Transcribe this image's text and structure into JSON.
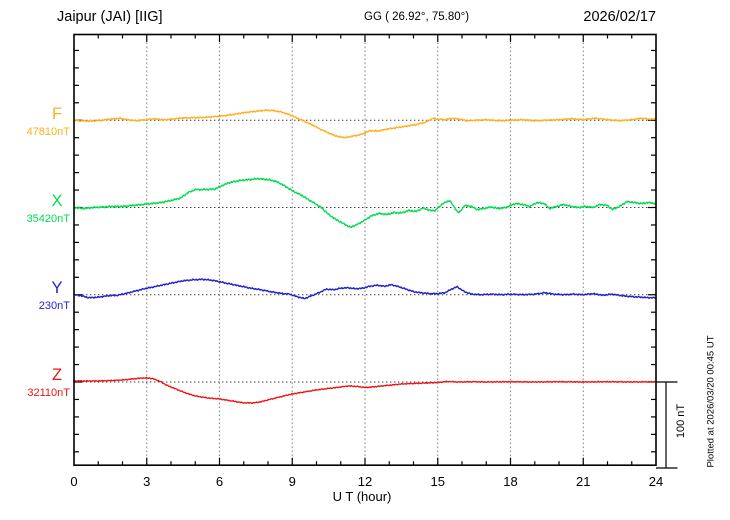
{
  "header": {
    "station": "Jaipur (JAI)  [IIG]",
    "coordinates": "GG ( 26.92°,  75.80°)",
    "date": "2026/02/17"
  },
  "left_labels": [
    {
      "letter": "F",
      "value": "47810nT",
      "color": "#FFAF1E"
    },
    {
      "letter": "X",
      "value": "35420nT",
      "color": "#00DC50"
    },
    {
      "letter": "Y",
      "value": "230nT",
      "color": "#2222CC"
    },
    {
      "letter": "Z",
      "value": "32110nT",
      "color": "#EE1414"
    }
  ],
  "bottom_axis": {
    "hour_labels": [
      "0",
      "3",
      "6",
      "9",
      "12",
      "15",
      "18",
      "21",
      "24"
    ],
    "title": "U T (hour)"
  },
  "scale_bar": {
    "label": "100 nT",
    "nT": 100
  },
  "footer": {
    "plotted_at": "Plotted at 2026/03/20 00:45 UT"
  },
  "chart_data": {
    "type": "line",
    "title": "Jaipur (JAI) [IIG] magnetogram, 2026/02/17",
    "xlabel": "U T (hour)",
    "x_range": [
      0,
      24
    ],
    "x_ticks": [
      0,
      3,
      6,
      9,
      12,
      15,
      18,
      21,
      24
    ],
    "grid": "dotted vertical every 3 h; dotted horizontal at each component baseline",
    "scale_bar_nT": 100,
    "series": [
      {
        "name": "F",
        "baseline_label": "47810nT",
        "color": "#FFAF1E",
        "noise_nT": 1.0,
        "seed": 1,
        "points": [
          [
            0,
            0
          ],
          [
            0.3,
            -0.8
          ],
          [
            0.7,
            -1.0
          ],
          [
            1.2,
            0.2
          ],
          [
            1.6,
            1.5
          ],
          [
            1.9,
            2.3
          ],
          [
            2.2,
            0.5
          ],
          [
            2.6,
            -0.6
          ],
          [
            3.0,
            0.6
          ],
          [
            3.3,
            1.7
          ],
          [
            3.7,
            0.3
          ],
          [
            4.1,
            1.5
          ],
          [
            4.5,
            2.6
          ],
          [
            5.0,
            2.9
          ],
          [
            5.5,
            3.5
          ],
          [
            6.0,
            4.6
          ],
          [
            6.5,
            6.4
          ],
          [
            7.0,
            8.7
          ],
          [
            7.5,
            10.4
          ],
          [
            7.9,
            11.6
          ],
          [
            8.2,
            11.3
          ],
          [
            8.6,
            9.2
          ],
          [
            9.0,
            5.2
          ],
          [
            9.4,
            0.0
          ],
          [
            9.8,
            -5.2
          ],
          [
            10.2,
            -11.0
          ],
          [
            10.6,
            -16.2
          ],
          [
            10.9,
            -19.1
          ],
          [
            11.2,
            -20.2
          ],
          [
            11.5,
            -18.5
          ],
          [
            11.9,
            -16.2
          ],
          [
            12.2,
            -12.1
          ],
          [
            12.5,
            -12.7
          ],
          [
            12.9,
            -10.4
          ],
          [
            13.3,
            -8.7
          ],
          [
            13.7,
            -6.9
          ],
          [
            14.1,
            -5.2
          ],
          [
            14.5,
            -2.3
          ],
          [
            14.8,
            2.3
          ],
          [
            15.0,
            1.2
          ],
          [
            15.3,
            0.6
          ],
          [
            15.6,
            2.3
          ],
          [
            15.9,
            1.2
          ],
          [
            16.2,
            -0.6
          ],
          [
            16.6,
            0.0
          ],
          [
            17.0,
            0.6
          ],
          [
            17.5,
            -0.6
          ],
          [
            18.0,
            0.0
          ],
          [
            18.5,
            0.6
          ],
          [
            19.0,
            -0.6
          ],
          [
            19.5,
            0.0
          ],
          [
            20.0,
            0.6
          ],
          [
            20.5,
            1.7
          ],
          [
            21.0,
            0.6
          ],
          [
            21.5,
            2.3
          ],
          [
            22.0,
            0.6
          ],
          [
            22.5,
            -0.6
          ],
          [
            23.0,
            0.6
          ],
          [
            23.4,
            2.3
          ],
          [
            23.7,
            1.2
          ],
          [
            24,
            1.2
          ]
        ]
      },
      {
        "name": "X",
        "baseline_label": "35420nT",
        "color": "#00DC50",
        "noise_nT": 1.2,
        "seed": 2,
        "points": [
          [
            0,
            0
          ],
          [
            0.4,
            -1.2
          ],
          [
            0.8,
            0.0
          ],
          [
            1.2,
            0.6
          ],
          [
            1.6,
            1.2
          ],
          [
            2.0,
            1.2
          ],
          [
            2.4,
            2.3
          ],
          [
            2.8,
            3.5
          ],
          [
            3.2,
            4.6
          ],
          [
            3.6,
            5.8
          ],
          [
            4.0,
            8.1
          ],
          [
            4.4,
            11.0
          ],
          [
            4.7,
            17.3
          ],
          [
            5.0,
            20.8
          ],
          [
            5.4,
            20.8
          ],
          [
            5.8,
            21.4
          ],
          [
            6.1,
            25.4
          ],
          [
            6.4,
            28.9
          ],
          [
            6.8,
            31.2
          ],
          [
            7.2,
            32.4
          ],
          [
            7.6,
            33.5
          ],
          [
            8.0,
            32.4
          ],
          [
            8.3,
            30.6
          ],
          [
            8.6,
            26.6
          ],
          [
            9.0,
            19.7
          ],
          [
            9.4,
            13.9
          ],
          [
            9.8,
            6.9
          ],
          [
            10.2,
            0.0
          ],
          [
            10.5,
            -8.1
          ],
          [
            10.8,
            -13.9
          ],
          [
            11.1,
            -18.5
          ],
          [
            11.4,
            -23.1
          ],
          [
            11.6,
            -20.8
          ],
          [
            11.9,
            -16.2
          ],
          [
            12.1,
            -12.7
          ],
          [
            12.3,
            -9.2
          ],
          [
            12.6,
            -6.9
          ],
          [
            12.9,
            -8.1
          ],
          [
            13.2,
            -5.8
          ],
          [
            13.5,
            -6.4
          ],
          [
            13.8,
            -3.5
          ],
          [
            14.1,
            -4.6
          ],
          [
            14.4,
            -0.6
          ],
          [
            14.7,
            -3.5
          ],
          [
            14.9,
            -3.5
          ],
          [
            15.2,
            4.6
          ],
          [
            15.5,
            8.1
          ],
          [
            15.8,
            -4.6
          ],
          [
            15.9,
            -5.8
          ],
          [
            16.1,
            2.3
          ],
          [
            16.4,
            1.2
          ],
          [
            16.6,
            -2.3
          ],
          [
            16.9,
            -1.2
          ],
          [
            17.2,
            0.6
          ],
          [
            17.5,
            -1.2
          ],
          [
            17.8,
            0.0
          ],
          [
            18.2,
            4.6
          ],
          [
            18.5,
            3.5
          ],
          [
            18.8,
            1.2
          ],
          [
            19.1,
            5.8
          ],
          [
            19.4,
            4.6
          ],
          [
            19.6,
            -1.2
          ],
          [
            19.9,
            1.2
          ],
          [
            20.2,
            3.5
          ],
          [
            20.5,
            1.2
          ],
          [
            20.8,
            0.0
          ],
          [
            21.1,
            1.2
          ],
          [
            21.4,
            0.0
          ],
          [
            21.7,
            3.5
          ],
          [
            22.0,
            2.3
          ],
          [
            22.2,
            -2.3
          ],
          [
            22.5,
            1.2
          ],
          [
            22.8,
            6.9
          ],
          [
            23.1,
            5.8
          ],
          [
            23.4,
            4.6
          ],
          [
            23.7,
            5.8
          ],
          [
            24,
            4.6
          ]
        ]
      },
      {
        "name": "Y",
        "baseline_label": "230nT",
        "color": "#2222CC",
        "noise_nT": 1.0,
        "seed": 3,
        "points": [
          [
            0,
            0
          ],
          [
            0.3,
            -1.2
          ],
          [
            0.6,
            -3.5
          ],
          [
            1.0,
            -2.9
          ],
          [
            1.4,
            -1.2
          ],
          [
            1.8,
            -0.6
          ],
          [
            2.1,
            1.2
          ],
          [
            2.5,
            4.0
          ],
          [
            2.9,
            6.9
          ],
          [
            3.3,
            9.2
          ],
          [
            3.7,
            11.6
          ],
          [
            4.1,
            13.9
          ],
          [
            4.5,
            16.2
          ],
          [
            4.9,
            17.3
          ],
          [
            5.3,
            17.9
          ],
          [
            5.7,
            16.8
          ],
          [
            6.1,
            14.5
          ],
          [
            6.5,
            12.1
          ],
          [
            6.9,
            9.8
          ],
          [
            7.3,
            7.5
          ],
          [
            7.7,
            5.8
          ],
          [
            8.1,
            3.5
          ],
          [
            8.5,
            1.7
          ],
          [
            8.9,
            0.6
          ],
          [
            9.2,
            -2.3
          ],
          [
            9.5,
            -4.6
          ],
          [
            9.8,
            -1.2
          ],
          [
            10.1,
            2.3
          ],
          [
            10.4,
            6.4
          ],
          [
            10.7,
            5.8
          ],
          [
            11.0,
            7.5
          ],
          [
            11.3,
            8.1
          ],
          [
            11.6,
            6.9
          ],
          [
            11.9,
            7.5
          ],
          [
            12.2,
            9.8
          ],
          [
            12.5,
            11.0
          ],
          [
            12.8,
            9.8
          ],
          [
            13.1,
            11.6
          ],
          [
            13.4,
            9.2
          ],
          [
            13.7,
            6.4
          ],
          [
            14.0,
            3.5
          ],
          [
            14.3,
            2.3
          ],
          [
            14.7,
            1.2
          ],
          [
            15.0,
            1.2
          ],
          [
            15.3,
            2.3
          ],
          [
            15.6,
            6.9
          ],
          [
            15.8,
            9.2
          ],
          [
            16.1,
            3.5
          ],
          [
            16.4,
            0.6
          ],
          [
            16.8,
            0.0
          ],
          [
            17.2,
            0.6
          ],
          [
            17.6,
            0.0
          ],
          [
            18.0,
            0.6
          ],
          [
            18.5,
            0.0
          ],
          [
            19.0,
            0.6
          ],
          [
            19.4,
            2.3
          ],
          [
            19.8,
            0.6
          ],
          [
            20.2,
            0.0
          ],
          [
            20.6,
            0.6
          ],
          [
            21.0,
            0.0
          ],
          [
            21.4,
            1.2
          ],
          [
            21.8,
            -0.6
          ],
          [
            22.2,
            0.6
          ],
          [
            22.6,
            -1.2
          ],
          [
            23.0,
            -2.3
          ],
          [
            23.4,
            -2.9
          ],
          [
            23.7,
            -3.5
          ],
          [
            24,
            -3.5
          ]
        ]
      },
      {
        "name": "Z",
        "baseline_label": "32110nT",
        "color": "#EE1414",
        "noise_nT": 0.7,
        "seed": 4,
        "points": [
          [
            0,
            1.2
          ],
          [
            0.5,
            1.2
          ],
          [
            1.0,
            1.2
          ],
          [
            1.5,
            1.7
          ],
          [
            2.0,
            2.3
          ],
          [
            2.4,
            3.5
          ],
          [
            2.8,
            4.6
          ],
          [
            3.1,
            4.6
          ],
          [
            3.3,
            3.5
          ],
          [
            3.6,
            0.0
          ],
          [
            3.8,
            -3.5
          ],
          [
            4.2,
            -8.1
          ],
          [
            4.6,
            -12.7
          ],
          [
            5.0,
            -16.2
          ],
          [
            5.5,
            -18.5
          ],
          [
            6.0,
            -19.7
          ],
          [
            6.5,
            -22.0
          ],
          [
            7.0,
            -24.3
          ],
          [
            7.4,
            -24.3
          ],
          [
            7.7,
            -23.1
          ],
          [
            8.0,
            -20.8
          ],
          [
            8.5,
            -17.3
          ],
          [
            9.0,
            -13.9
          ],
          [
            9.5,
            -11.6
          ],
          [
            10.0,
            -9.2
          ],
          [
            10.5,
            -7.5
          ],
          [
            11.0,
            -5.8
          ],
          [
            11.3,
            -4.6
          ],
          [
            11.7,
            -5.2
          ],
          [
            12.0,
            -6.4
          ],
          [
            12.3,
            -5.8
          ],
          [
            12.7,
            -4.6
          ],
          [
            13.1,
            -3.5
          ],
          [
            13.5,
            -2.3
          ],
          [
            14.0,
            -1.7
          ],
          [
            14.5,
            -1.2
          ],
          [
            15.0,
            -0.6
          ],
          [
            15.4,
            0.6
          ],
          [
            15.8,
            0.0
          ],
          [
            16.5,
            0.3
          ],
          [
            17.0,
            0.0
          ],
          [
            18.0,
            0.3
          ],
          [
            19.0,
            0.0
          ],
          [
            20.0,
            0.3
          ],
          [
            21.0,
            0.0
          ],
          [
            22.0,
            0.3
          ],
          [
            23.0,
            0.0
          ],
          [
            24,
            0.3
          ]
        ]
      }
    ]
  }
}
